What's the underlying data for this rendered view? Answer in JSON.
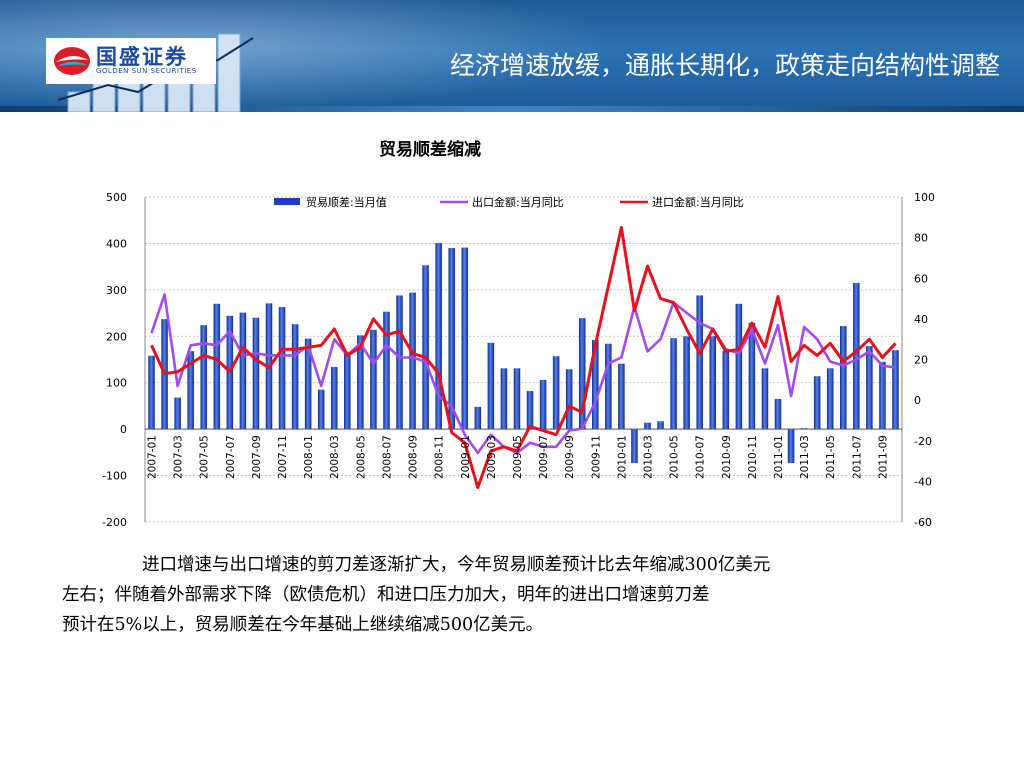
{
  "slide": {
    "title": "经济增速放缓，通胀长期化，政策走向结构性调整",
    "logo_text": "国盛证券",
    "logo_sub": "GOLDEN SUN SECURITIES",
    "chart_title": "贸易顺差缩减",
    "body_lines": [
      "进口增速与出口增速的剪刀差逐渐扩大，今年贸易顺差预计比去年缩减300亿美元",
      "左右；伴随着外部需求下降（欧债危机）和进口压力加大，明年的进出口增速剪刀差",
      "预计在5%以上，贸易顺差在今年基础上继续缩减500亿美元。"
    ],
    "colors": {
      "header": "#1e5a98",
      "bars": "#1f3fbf",
      "export_line": "#a34bf0",
      "import_line": "#e8101a"
    }
  },
  "chart_data": {
    "type": "bar+line",
    "title": "贸易顺差缩减",
    "x": [
      "2007-01",
      "2007-02",
      "2007-03",
      "2007-04",
      "2007-05",
      "2007-06",
      "2007-07",
      "2007-08",
      "2007-09",
      "2007-10",
      "2007-11",
      "2007-12",
      "2008-01",
      "2008-02",
      "2008-03",
      "2008-04",
      "2008-05",
      "2008-06",
      "2008-07",
      "2008-08",
      "2008-09",
      "2008-10",
      "2008-11",
      "2008-12",
      "2009-01",
      "2009-02",
      "2009-03",
      "2009-04",
      "2009-05",
      "2009-06",
      "2009-07",
      "2009-08",
      "2009-09",
      "2009-10",
      "2009-11",
      "2009-12",
      "2010-01",
      "2010-02",
      "2010-03",
      "2010-04",
      "2010-05",
      "2010-06",
      "2010-07",
      "2010-08",
      "2010-09",
      "2010-10",
      "2010-11",
      "2010-12",
      "2011-01",
      "2011-02",
      "2011-03",
      "2011-04",
      "2011-05",
      "2011-06",
      "2011-07",
      "2011-08",
      "2011-09",
      "2011-10"
    ],
    "x_tick_labels": [
      "2007-01",
      "2007-03",
      "2007-05",
      "2007-07",
      "2007-09",
      "2007-11",
      "2008-01",
      "2008-03",
      "2008-05",
      "2008-07",
      "2008-09",
      "2008-11",
      "2009-01",
      "2009-03",
      "2009-05",
      "2009-07",
      "2009-09",
      "2009-11",
      "2010-01",
      "2010-03",
      "2010-05",
      "2010-07",
      "2010-09",
      "2010-11",
      "2011-01",
      "2011-03",
      "2011-05",
      "2011-07",
      "2011-09"
    ],
    "series": [
      {
        "name": "贸易顺差:当月值",
        "axis": "left",
        "type": "bar",
        "values": [
          158,
          237,
          68,
          168,
          224,
          270,
          244,
          251,
          240,
          271,
          263,
          226,
          195,
          85,
          134,
          167,
          202,
          214,
          253,
          288,
          294,
          353,
          401,
          390,
          391,
          48,
          186,
          131,
          131,
          82,
          106,
          157,
          129,
          239,
          192,
          184,
          141,
          -73,
          14,
          17,
          196,
          200,
          288,
          200,
          169,
          270,
          229,
          131,
          65,
          -73,
          2,
          114,
          131,
          222,
          315,
          179,
          145,
          170
        ]
      },
      {
        "name": "出口金额:当月同比",
        "axis": "right",
        "type": "line",
        "values": [
          33,
          52,
          7,
          27,
          28,
          27,
          34,
          22,
          23,
          22,
          22,
          22,
          27,
          7,
          30,
          22,
          28,
          18,
          27,
          21,
          21,
          19,
          2,
          -3,
          -17,
          -26,
          -17,
          -23,
          -26,
          -21,
          -23,
          -23,
          -15,
          -14,
          -1,
          18,
          21,
          46,
          24,
          30,
          48,
          43,
          38,
          35,
          25,
          23,
          35,
          18,
          37,
          2,
          36,
          30,
          19,
          17,
          20,
          24,
          17,
          16
        ]
      },
      {
        "name": "进口金额:当月同比",
        "axis": "right",
        "type": "line",
        "values": [
          27,
          13,
          14,
          18,
          22,
          20,
          14,
          26,
          20,
          16,
          25,
          25,
          26,
          27,
          35,
          22,
          26,
          40,
          32,
          34,
          23,
          21,
          13,
          -16,
          -21,
          -43,
          -25,
          -23,
          -25,
          -13,
          -15,
          -17,
          -3,
          -6,
          27,
          56,
          85,
          44,
          66,
          50,
          48,
          35,
          23,
          35,
          24,
          25,
          38,
          26,
          51,
          19,
          27,
          22,
          28,
          19,
          24,
          30,
          21,
          28
        ]
      }
    ],
    "left_axis": {
      "range": [
        -200,
        500
      ],
      "ticks": [
        500,
        400,
        300,
        200,
        100,
        0,
        -100,
        -200
      ]
    },
    "right_axis": {
      "range": [
        -60,
        100
      ],
      "ticks": [
        100,
        80,
        60,
        40,
        20,
        0,
        -20,
        -40,
        -60
      ]
    },
    "legend": {
      "placement": "top-center"
    },
    "grid": true
  }
}
